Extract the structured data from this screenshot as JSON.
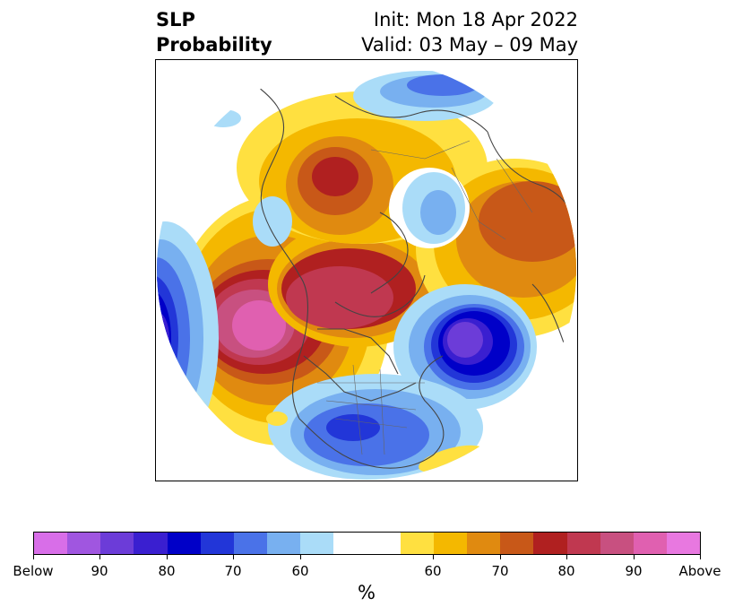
{
  "title": {
    "left_line1": "SLP",
    "left_line2": "Probability",
    "right_line1": "Init: Mon 18 Apr 2022",
    "right_line2": "Valid: 03 May – 09 May"
  },
  "map": {
    "projection": "polar stereographic (north pole)",
    "background": "#ffffff",
    "border_color": "#444444"
  },
  "colorbar": {
    "colors": [
      "#d86ee8",
      "#a056e0",
      "#6c3cd8",
      "#3a1fd0",
      "#0000c8",
      "#2236d8",
      "#4a72e8",
      "#78b0f0",
      "#aadcf8",
      "#ffffff",
      "#ffffff",
      "#ffe040",
      "#f4b800",
      "#e08a10",
      "#c85818",
      "#b02020",
      "#c03850",
      "#c85080",
      "#e060b0",
      "#e878e0"
    ],
    "tick_labels": [
      "Below",
      "90",
      "80",
      "70",
      "60",
      "60",
      "70",
      "80",
      "90",
      "Above"
    ],
    "unit": "%"
  }
}
